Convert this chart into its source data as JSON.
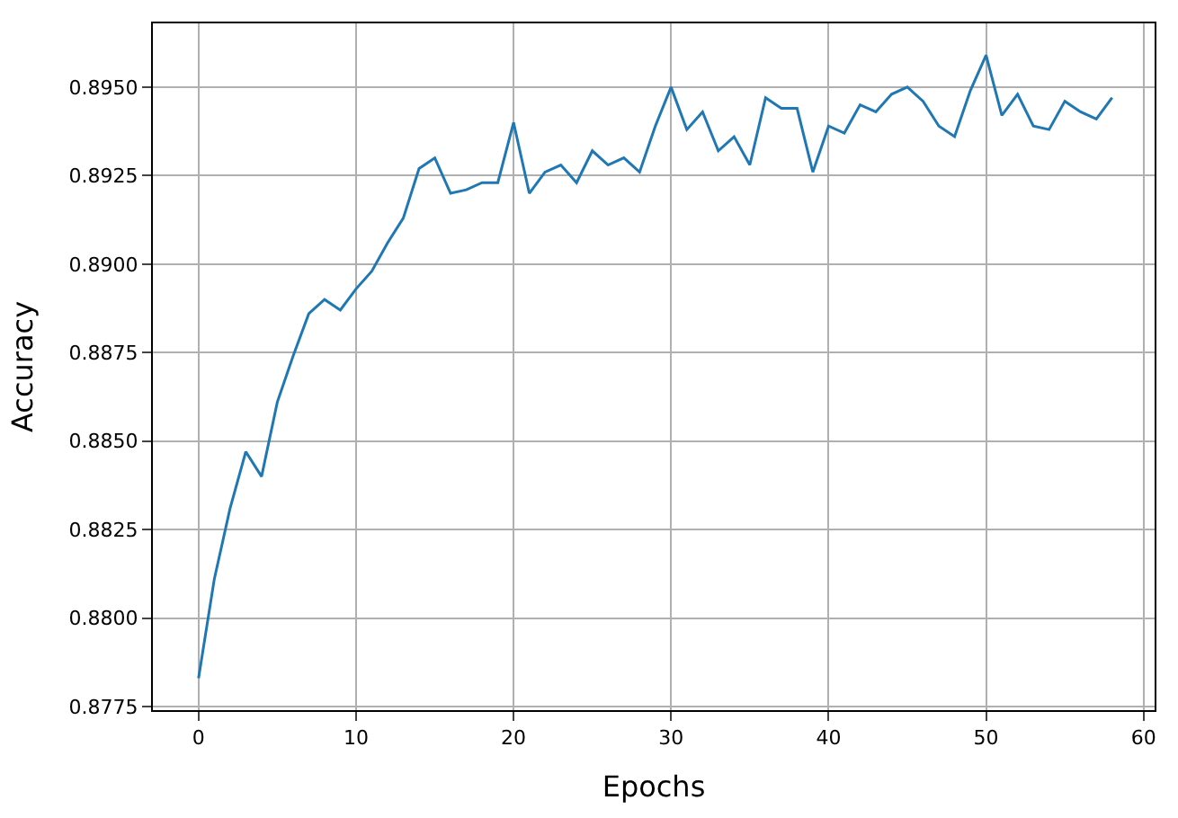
{
  "chart_data": {
    "type": "line",
    "xlabel": "Epochs",
    "ylabel": "Accuracy",
    "x": [
      0,
      1,
      2,
      3,
      4,
      5,
      6,
      7,
      8,
      9,
      10,
      11,
      12,
      13,
      14,
      15,
      16,
      17,
      18,
      19,
      20,
      21,
      22,
      23,
      24,
      25,
      26,
      27,
      28,
      29,
      30,
      31,
      32,
      33,
      34,
      35,
      36,
      37,
      38,
      39,
      40,
      41,
      42,
      43,
      44,
      45,
      46,
      47,
      48,
      49,
      50,
      51,
      52,
      53,
      54,
      55,
      56,
      57,
      58
    ],
    "series": [
      {
        "color": "#1f77b4",
        "values": [
          0.8783,
          0.8811,
          0.8831,
          0.8847,
          0.884,
          0.8861,
          0.8874,
          0.8886,
          0.889,
          0.8887,
          0.8893,
          0.8898,
          0.8906,
          0.8913,
          0.8927,
          0.893,
          0.892,
          0.8921,
          0.8923,
          0.8923,
          0.894,
          0.892,
          0.8926,
          0.8928,
          0.8923,
          0.8932,
          0.8928,
          0.893,
          0.8926,
          0.8939,
          0.895,
          0.8938,
          0.8943,
          0.8932,
          0.8936,
          0.8928,
          0.8947,
          0.8944,
          0.8944,
          0.8926,
          0.8939,
          0.8937,
          0.8945,
          0.8943,
          0.8948,
          0.895,
          0.8946,
          0.8939,
          0.8936,
          0.8949,
          0.8959,
          0.8942,
          0.8948,
          0.8939,
          0.8938,
          0.8946,
          0.8943,
          0.8941,
          0.8947
        ]
      }
    ],
    "xlim": [
      -2.9,
      60.7
    ],
    "xticks": [
      0,
      10,
      20,
      30,
      40,
      50,
      60
    ],
    "ylim": [
      0.8774,
      0.8968
    ],
    "yticks": [
      {
        "value": 0.8775,
        "label": "0.8775"
      },
      {
        "value": 0.88,
        "label": "0.8800"
      },
      {
        "value": 0.8825,
        "label": "0.8825"
      },
      {
        "value": 0.885,
        "label": "0.8850"
      },
      {
        "value": 0.8875,
        "label": "0.8875"
      },
      {
        "value": 0.89,
        "label": "0.8900"
      },
      {
        "value": 0.8925,
        "label": "0.8925"
      },
      {
        "value": 0.895,
        "label": "0.8950"
      }
    ],
    "grid": true,
    "line_style": "solid"
  }
}
